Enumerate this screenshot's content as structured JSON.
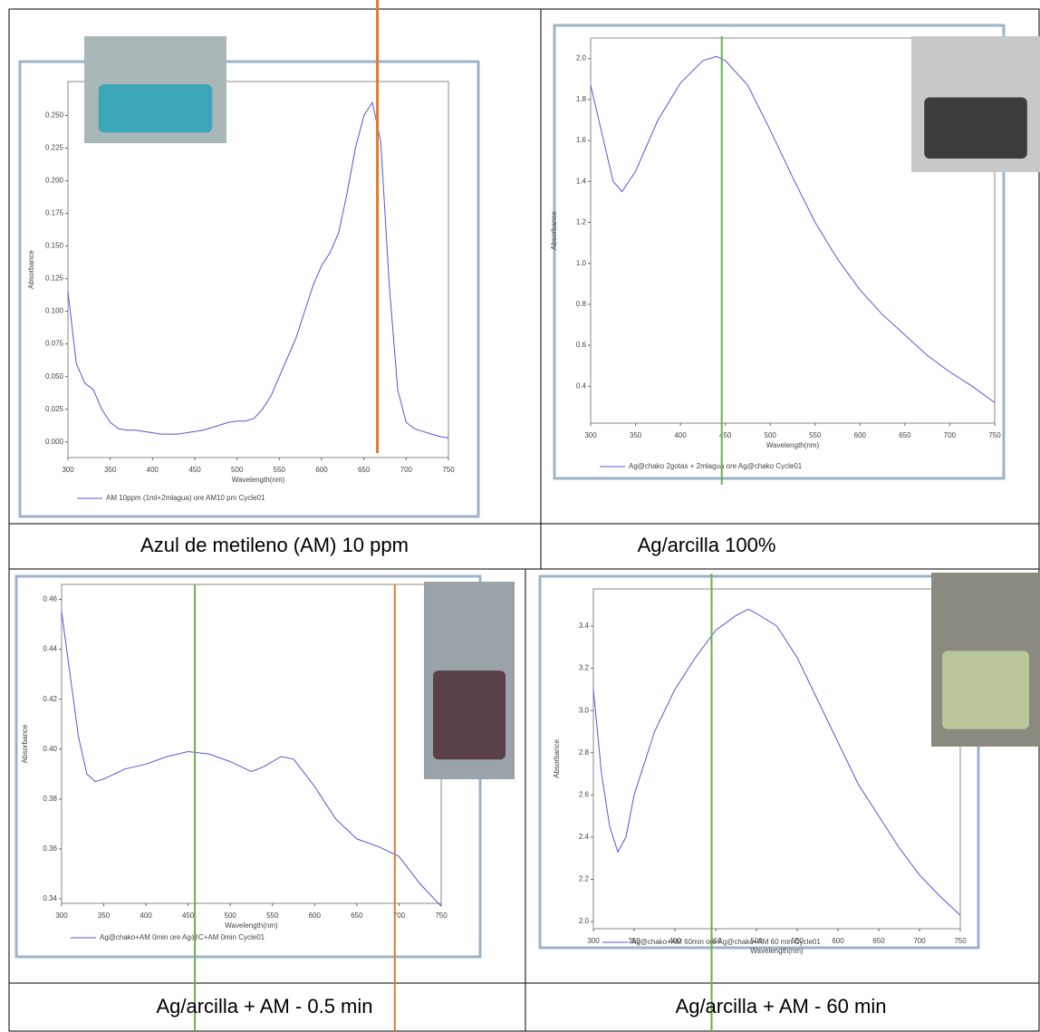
{
  "chart_data": [
    {
      "type": "line",
      "caption": "Azul de metileno (AM) 10 ppm",
      "xlabel": "Wavelength(nm)",
      "ylabel": "Absorbance",
      "x": [
        300,
        310,
        320,
        330,
        340,
        350,
        360,
        370,
        380,
        390,
        400,
        410,
        420,
        430,
        440,
        450,
        460,
        470,
        480,
        490,
        500,
        510,
        520,
        530,
        540,
        550,
        560,
        570,
        580,
        590,
        600,
        610,
        620,
        630,
        640,
        650,
        660,
        670,
        680,
        690,
        700,
        710,
        720,
        730,
        740,
        750
      ],
      "series": [
        {
          "name": "AM 10ppm (1ml+2mlagua) ore AM10 pm Cycle01",
          "color": "#5555dd",
          "values": [
            0.115,
            0.06,
            0.045,
            0.04,
            0.025,
            0.015,
            0.01,
            0.009,
            0.009,
            0.008,
            0.007,
            0.006,
            0.006,
            0.006,
            0.007,
            0.008,
            0.009,
            0.011,
            0.013,
            0.015,
            0.016,
            0.016,
            0.018,
            0.025,
            0.035,
            0.05,
            0.065,
            0.08,
            0.1,
            0.12,
            0.135,
            0.145,
            0.16,
            0.19,
            0.225,
            0.25,
            0.26,
            0.23,
            0.12,
            0.04,
            0.015,
            0.01,
            0.008,
            0.006,
            0.004,
            0.003
          ]
        }
      ],
      "xlim": [
        300,
        750
      ],
      "xticks": [
        300,
        350,
        400,
        450,
        500,
        550,
        600,
        650,
        700,
        750
      ],
      "ylim": [
        -0.012,
        0.276
      ],
      "yticks": [
        {
          "value": 0,
          "label": "0.000"
        },
        {
          "value": 0.025,
          "label": "0.025"
        },
        {
          "value": 0.05,
          "label": "0.050"
        },
        {
          "value": 0.075,
          "label": "0.075"
        },
        {
          "value": 0.1,
          "label": "0.100"
        },
        {
          "value": 0.125,
          "label": "0.125"
        },
        {
          "value": 0.15,
          "label": "0.150"
        },
        {
          "value": 0.175,
          "label": "0.175"
        },
        {
          "value": 0.2,
          "label": "0.200"
        },
        {
          "value": 0.225,
          "label": "0.225"
        },
        {
          "value": 0.25,
          "label": "0.250"
        }
      ],
      "markers": [
        {
          "x": 666,
          "color": "#e07b2a"
        }
      ]
    },
    {
      "type": "line",
      "caption": "Ag/arcilla 100%",
      "xlabel": "Wavelength(nm)",
      "ylabel": "Absorbance",
      "x": [
        300,
        325,
        335,
        350,
        375,
        400,
        425,
        440,
        450,
        475,
        500,
        525,
        550,
        575,
        600,
        625,
        650,
        675,
        700,
        725,
        750
      ],
      "series": [
        {
          "name": "Ag@chako 2gotas + 2mlagua ore Ag@chako Cycle01",
          "color": "#5555dd",
          "values": [
            1.87,
            1.4,
            1.35,
            1.45,
            1.7,
            1.88,
            1.99,
            2.01,
            1.99,
            1.87,
            1.65,
            1.42,
            1.2,
            1.02,
            0.87,
            0.75,
            0.65,
            0.55,
            0.47,
            0.4,
            0.32
          ]
        }
      ],
      "xlim": [
        300,
        750
      ],
      "xticks": [
        300,
        350,
        400,
        450,
        500,
        550,
        600,
        650,
        700,
        750
      ],
      "ylim": [
        0.22,
        2.1
      ],
      "yticks": [
        0.4,
        0.6,
        0.8,
        {
          "value": 1,
          "label": "1.0"
        },
        1.2,
        1.4,
        1.6,
        1.8,
        {
          "value": 2,
          "label": "2.0"
        }
      ],
      "markers": [
        {
          "x": 446,
          "color": "#6ab04c"
        }
      ]
    },
    {
      "type": "line",
      "caption": "Ag/arcilla + AM - 0.5 min",
      "xlabel": "Wavelength(nm)",
      "ylabel": "Absorbance",
      "x": [
        300,
        310,
        320,
        330,
        340,
        350,
        375,
        400,
        425,
        450,
        475,
        500,
        525,
        540,
        560,
        575,
        600,
        625,
        650,
        675,
        700,
        725,
        750
      ],
      "series": [
        {
          "name": "Ag@chako+AM 0min ore Ag@C+AM 0min Cycle01",
          "color": "#5555dd",
          "values": [
            0.455,
            0.43,
            0.405,
            0.39,
            0.387,
            0.388,
            0.392,
            0.394,
            0.397,
            0.399,
            0.398,
            0.395,
            0.391,
            0.393,
            0.397,
            0.396,
            0.385,
            0.372,
            0.364,
            0.361,
            0.357,
            0.346,
            0.337
          ]
        }
      ],
      "xlim": [
        300,
        750
      ],
      "xticks": [
        300,
        350,
        400,
        450,
        500,
        550,
        600,
        650,
        700,
        750
      ],
      "ylim": [
        0.3382,
        0.466
      ],
      "yticks": [
        0.34,
        0.36,
        0.38,
        {
          "value": 0.4,
          "label": "0.40"
        },
        0.42,
        0.44,
        0.46
      ],
      "markers": [
        {
          "x": 458,
          "color": "#6ab04c"
        },
        {
          "x": 695,
          "color": "#e07b2a"
        }
      ]
    },
    {
      "type": "line",
      "caption": "Ag/arcilla + AM - 60 min",
      "xlabel": "Wavelength(nm)",
      "ylabel": "Absorbance",
      "x": [
        300,
        310,
        320,
        330,
        340,
        350,
        375,
        400,
        425,
        450,
        475,
        490,
        500,
        525,
        550,
        575,
        600,
        625,
        650,
        675,
        700,
        725,
        750
      ],
      "series": [
        {
          "name": "Ag@chako+AM 60min ore Ag@chako+AM 60 min Cycle01",
          "color": "#5555dd",
          "values": [
            3.1,
            2.7,
            2.45,
            2.33,
            2.4,
            2.6,
            2.9,
            3.1,
            3.25,
            3.38,
            3.45,
            3.48,
            3.46,
            3.4,
            3.25,
            3.05,
            2.85,
            2.65,
            2.5,
            2.35,
            2.22,
            2.12,
            2.03
          ]
        }
      ],
      "xlim": [
        300,
        750
      ],
      "xticks": [
        300,
        350,
        400,
        450,
        500,
        550,
        600,
        650,
        700,
        750
      ],
      "ylim": [
        1.966,
        3.576
      ],
      "yticks": [
        {
          "value": 2,
          "label": "2.0"
        },
        2.2,
        2.4,
        2.6,
        2.8,
        {
          "value": 3,
          "label": "3.0"
        },
        3.2,
        3.4
      ],
      "markers": [
        {
          "x": 445,
          "color": "#6ab04c"
        }
      ]
    }
  ]
}
